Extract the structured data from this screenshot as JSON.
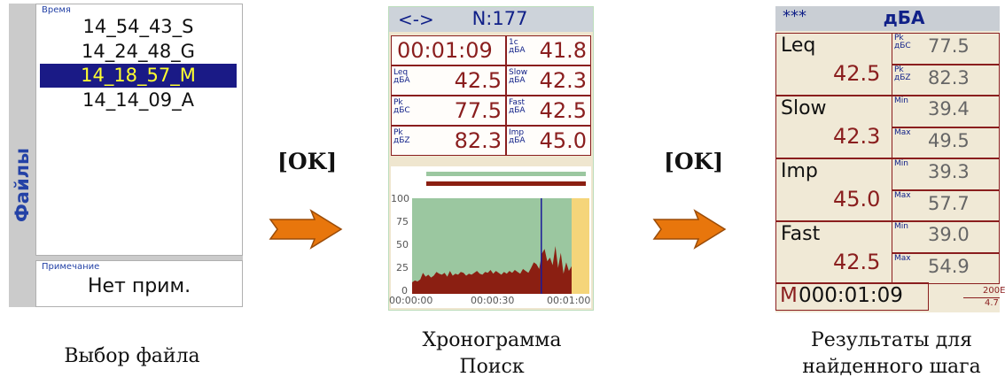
{
  "screen1": {
    "side_label": "Файлы",
    "time_caption": "Время",
    "files": [
      "14_54_43_S",
      "14_24_48_G",
      "14_18_57_M",
      "14_14_09_A"
    ],
    "selected_index": 2,
    "note_caption": "Примечание",
    "note_value": "Нет прим.",
    "caption": "Выбор файла"
  },
  "arrows": {
    "ok1": "[OK]",
    "ok2": "[OK]",
    "color": "#e8760c"
  },
  "screen2": {
    "mode": "<->",
    "n_label": "N:177",
    "time": "00:01:09",
    "cells": [
      {
        "label": "1с\nдБА",
        "value": "41.8"
      },
      {
        "label": "Leq\nдБА",
        "value": "42.5"
      },
      {
        "label": "Slow\nдБА",
        "value": "42.3"
      },
      {
        "label": "Pk\nдБC",
        "value": "77.5"
      },
      {
        "label": "Fast\nдБА",
        "value": "42.5"
      },
      {
        "label": "Pk\nдБZ",
        "value": "82.3"
      },
      {
        "label": "Imp\nдБА",
        "value": "45.0"
      }
    ],
    "caption_line1": "Хронограмма",
    "caption_line2": "Поиск"
  },
  "chart_data": {
    "type": "area",
    "y_ticks": [
      "100",
      "75",
      "50",
      "25",
      "0"
    ],
    "x_ticks": [
      "00:00:00",
      "00:00:30",
      "00:01:00"
    ],
    "ylim": [
      0,
      100
    ],
    "cursor_position_fraction": 0.81,
    "values": [
      12,
      14,
      13,
      15,
      22,
      18,
      20,
      17,
      19,
      23,
      21,
      20,
      22,
      18,
      24,
      19,
      21,
      20,
      23,
      22,
      19,
      21,
      20,
      22,
      24,
      21,
      20,
      23,
      22,
      25,
      21,
      24,
      22,
      20,
      23,
      21,
      24,
      22,
      25,
      23,
      21,
      26,
      24,
      22,
      27,
      33,
      31,
      26,
      42,
      47,
      34,
      38,
      30,
      50,
      27,
      43,
      21,
      33,
      24,
      29
    ],
    "colors": {
      "area": "#8b1f12",
      "bg": "#9bc7a0",
      "cursor": "#1a1a9a",
      "tail": "#f5d57a"
    }
  },
  "screen3": {
    "stars": "***",
    "unit": "дБА",
    "rows": [
      {
        "name": "Leq",
        "value": "42.5",
        "top_label": "Pk\nдБC",
        "top_val": "77.5",
        "bot_label": "Pk\nдБZ",
        "bot_val": "82.3"
      },
      {
        "name": "Slow",
        "value": "42.3",
        "top_label": "Min",
        "top_val": "39.4",
        "bot_label": "Max",
        "bot_val": "49.5"
      },
      {
        "name": "Imp",
        "value": "45.0",
        "top_label": "Min",
        "top_val": "39.3",
        "bot_label": "Max",
        "bot_val": "57.7"
      },
      {
        "name": "Fast",
        "value": "42.5",
        "top_label": "Min",
        "top_val": "39.0",
        "bot_label": "Max",
        "bot_val": "54.9"
      }
    ],
    "marker": "M",
    "elapsed": "000:01:09",
    "corner_top": "200E",
    "corner_bot": "4.7",
    "caption_line1": "Результаты для",
    "caption_line2": "найденного шага"
  }
}
